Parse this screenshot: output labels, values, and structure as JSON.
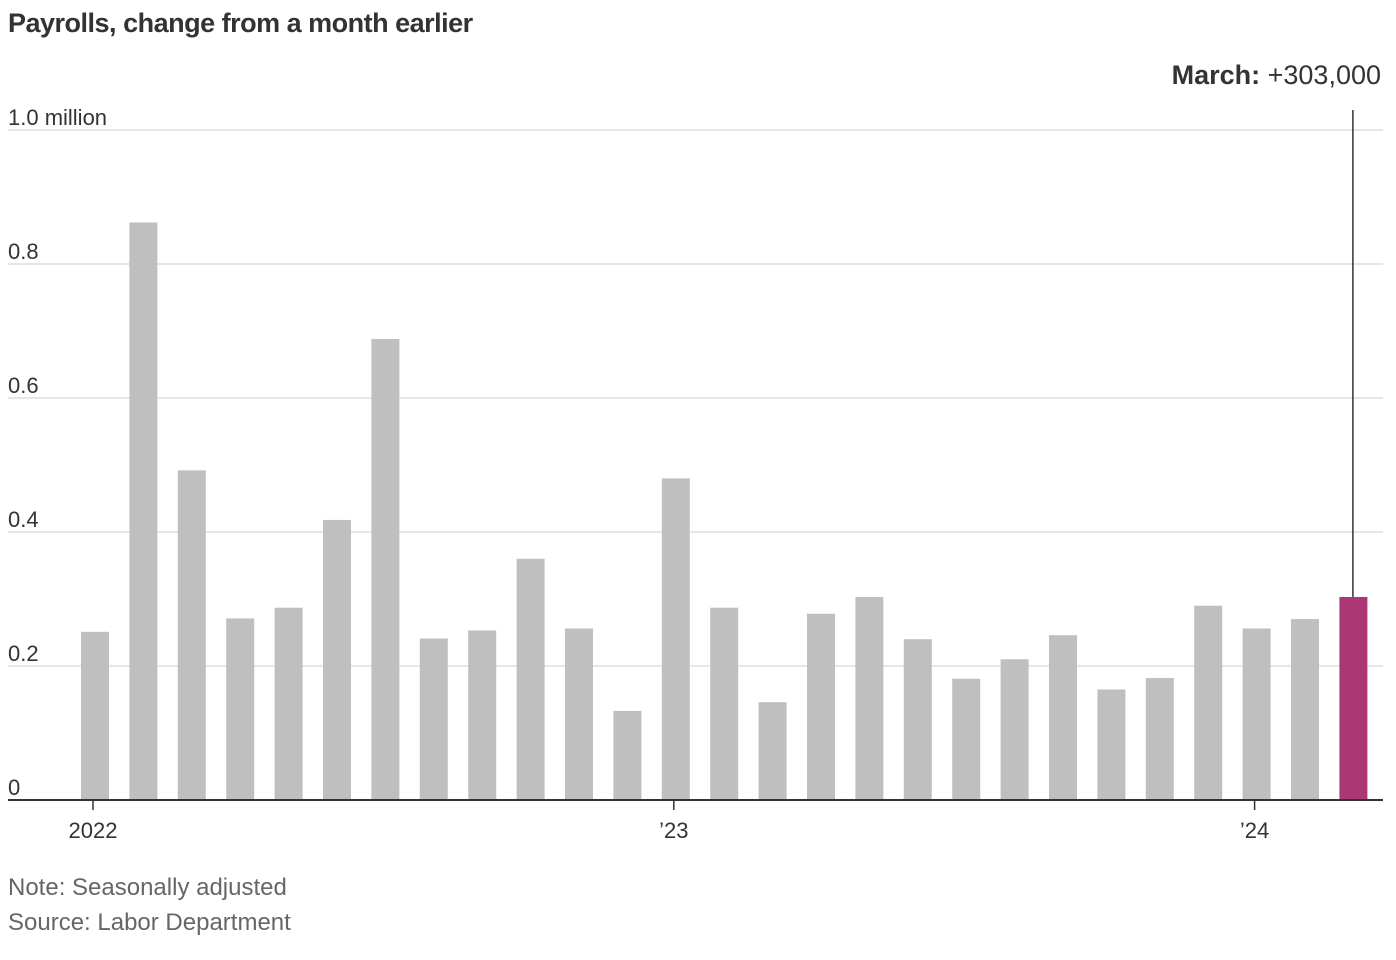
{
  "chart_data": {
    "type": "bar",
    "title": "Payrolls, change from a month earlier",
    "xlabel": "",
    "ylabel": "",
    "ylim": [
      0,
      1.0
    ],
    "y_ticks": [
      {
        "value": 0,
        "label": "0"
      },
      {
        "value": 0.2,
        "label": "0.2"
      },
      {
        "value": 0.4,
        "label": "0.4"
      },
      {
        "value": 0.6,
        "label": "0.6"
      },
      {
        "value": 0.8,
        "label": "0.8"
      },
      {
        "value": 1.0,
        "label": "1.0 million"
      }
    ],
    "x_ticks": [
      {
        "index": 0,
        "label": "2022"
      },
      {
        "index": 12,
        "label": "’23"
      },
      {
        "index": 24,
        "label": "’24"
      }
    ],
    "categories": [
      "Jan 2022",
      "Feb 2022",
      "Mar 2022",
      "Apr 2022",
      "May 2022",
      "Jun 2022",
      "Jul 2022",
      "Aug 2022",
      "Sep 2022",
      "Oct 2022",
      "Nov 2022",
      "Dec 2022",
      "Jan 2023",
      "Feb 2023",
      "Mar 2023",
      "Apr 2023",
      "May 2023",
      "Jun 2023",
      "Jul 2023",
      "Aug 2023",
      "Sep 2023",
      "Oct 2023",
      "Nov 2023",
      "Dec 2023",
      "Jan 2024",
      "Feb 2024",
      "Mar 2024"
    ],
    "values": [
      0.251,
      0.862,
      0.492,
      0.271,
      0.287,
      0.418,
      0.688,
      0.241,
      0.253,
      0.36,
      0.256,
      0.133,
      0.48,
      0.287,
      0.146,
      0.278,
      0.303,
      0.24,
      0.181,
      0.21,
      0.246,
      0.165,
      0.182,
      0.29,
      0.256,
      0.27,
      0.303
    ],
    "highlight_index": 26,
    "grid": true,
    "colors": {
      "bar": "#bfbfbf",
      "highlight": "#ab3775",
      "grid": "#dddddd",
      "axis": "#333333"
    },
    "annotation": {
      "label": "March:",
      "value": "+303,000"
    },
    "note": "Note: Seasonally adjusted",
    "source": "Source: Labor Department"
  }
}
